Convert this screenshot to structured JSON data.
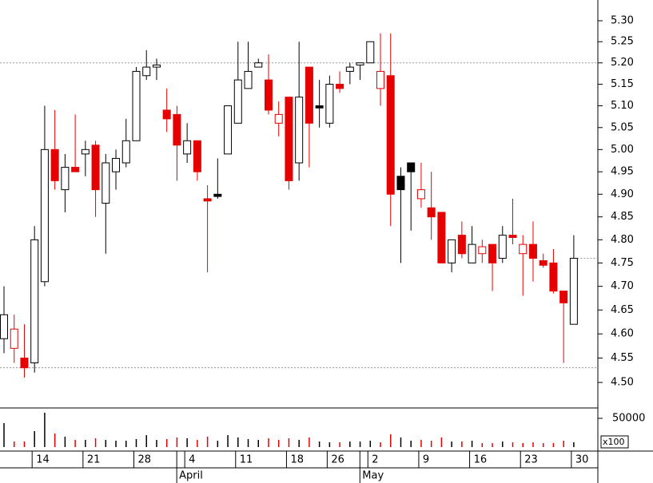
{
  "chart_data": {
    "type": "candlestick",
    "log_scale": true,
    "up_color": "#000000",
    "down_color": "#e60000",
    "categories": [
      null,
      null,
      null,
      "14",
      null,
      null,
      null,
      null,
      "21",
      null,
      null,
      null,
      null,
      "28",
      null,
      null,
      null,
      null,
      "4",
      null,
      null,
      null,
      null,
      "11",
      null,
      null,
      null,
      null,
      "18",
      null,
      null,
      null,
      "26",
      null,
      null,
      null,
      "2",
      null,
      null,
      null,
      null,
      "9",
      null,
      null,
      null,
      null,
      "16",
      null,
      null,
      null,
      null,
      "23",
      null,
      null,
      null,
      null,
      "30"
    ],
    "months": [
      null,
      null,
      null,
      null,
      null,
      null,
      null,
      null,
      null,
      null,
      null,
      null,
      null,
      null,
      null,
      null,
      null,
      null,
      "April",
      null,
      null,
      null,
      null,
      null,
      null,
      null,
      null,
      null,
      null,
      null,
      null,
      null,
      null,
      null,
      null,
      null,
      "May",
      null,
      null,
      null,
      null,
      null,
      null,
      null,
      null,
      null,
      null,
      null,
      null,
      null,
      null,
      null,
      null,
      null,
      null,
      null,
      null
    ],
    "open": [
      4.59,
      4.57,
      4.55,
      4.54,
      4.71,
      5.0,
      4.91,
      4.96,
      4.99,
      5.01,
      4.88,
      4.95,
      4.97,
      5.02,
      5.17,
      5.19,
      5.09,
      5.08,
      4.99,
      5.02,
      4.89,
      4.9,
      4.99,
      5.06,
      5.14,
      5.19,
      5.16,
      5.06,
      5.12,
      4.97,
      5.19,
      5.1,
      5.06,
      5.15,
      5.18,
      5.195,
      5.2,
      5.14,
      5.17,
      4.94,
      4.97,
      4.89,
      4.87,
      4.86,
      4.75,
      4.81,
      4.75,
      4.77,
      4.79,
      4.76,
      4.81,
      4.77,
      4.79,
      4.755,
      4.75,
      4.69,
      4.62
    ],
    "high": [
      4.7,
      4.64,
      4.62,
      4.83,
      5.1,
      5.09,
      4.99,
      5.08,
      5.02,
      5.02,
      4.99,
      5.0,
      5.07,
      5.19,
      5.23,
      5.21,
      5.14,
      5.1,
      5.06,
      5.02,
      4.92,
      4.98,
      5.1,
      5.25,
      5.25,
      5.21,
      5.22,
      5.11,
      5.12,
      5.25,
      5.19,
      5.16,
      5.17,
      5.18,
      5.2,
      5.2,
      5.25,
      5.27,
      5.27,
      4.96,
      4.97,
      4.97,
      4.95,
      4.86,
      4.8,
      4.84,
      4.83,
      4.8,
      4.79,
      4.83,
      4.89,
      4.81,
      4.84,
      4.77,
      4.78,
      4.69,
      4.81
    ],
    "low": [
      4.56,
      4.54,
      4.51,
      4.52,
      4.7,
      4.91,
      4.86,
      4.95,
      4.94,
      4.85,
      4.77,
      4.91,
      4.96,
      5.02,
      5.16,
      5.16,
      5.04,
      4.93,
      4.97,
      4.93,
      4.73,
      4.89,
      4.99,
      5.06,
      5.14,
      5.19,
      5.08,
      5.03,
      4.91,
      4.93,
      4.96,
      5.05,
      5.05,
      5.13,
      5.15,
      5.16,
      5.2,
      5.1,
      4.83,
      4.75,
      4.82,
      4.87,
      4.8,
      4.75,
      4.73,
      4.76,
      4.75,
      4.75,
      4.69,
      4.75,
      4.79,
      4.68,
      4.71,
      4.74,
      4.685,
      4.54,
      4.62
    ],
    "close": [
      4.64,
      4.61,
      4.53,
      4.8,
      5.0,
      4.93,
      4.96,
      4.95,
      5.0,
      4.91,
      4.97,
      4.98,
      5.02,
      5.18,
      5.19,
      5.195,
      5.07,
      5.01,
      5.02,
      4.95,
      4.885,
      4.895,
      5.1,
      5.16,
      5.18,
      5.2,
      5.09,
      5.08,
      4.93,
      5.12,
      5.06,
      5.095,
      5.15,
      5.14,
      5.19,
      5.2,
      5.25,
      5.18,
      4.9,
      4.91,
      4.95,
      4.91,
      4.85,
      4.75,
      4.8,
      4.77,
      4.79,
      4.785,
      4.75,
      4.81,
      4.805,
      4.79,
      4.76,
      4.745,
      4.69,
      4.665,
      4.76
    ],
    "volume": [
      41700,
      9700,
      9700,
      27800,
      59700,
      23600,
      18100,
      12500,
      12500,
      15300,
      12500,
      11100,
      11100,
      13900,
      20800,
      12500,
      13900,
      16700,
      15300,
      12500,
      18100,
      11100,
      20800,
      16700,
      13900,
      12500,
      15300,
      12500,
      15300,
      12500,
      16700,
      9700,
      8300,
      8300,
      9700,
      9700,
      11100,
      8300,
      22200,
      16700,
      11100,
      12500,
      11100,
      16700,
      9700,
      9700,
      11100,
      6900,
      6900,
      9700,
      8300,
      6900,
      8300,
      6900,
      6900,
      11100,
      8300
    ],
    "ylim": [
      4.45,
      5.35
    ],
    "yticks": [
      {
        "value": 5.3,
        "label": "5.30"
      },
      5.25,
      {
        "value": 5.2,
        "label": "5.20"
      },
      5.15,
      {
        "value": 5.1,
        "label": "5.10"
      },
      5.05,
      {
        "value": 5.0,
        "label": "5.00"
      },
      4.95,
      {
        "value": 4.9,
        "label": "4.90"
      },
      4.85,
      {
        "value": 4.8,
        "label": "4.80"
      },
      4.75,
      {
        "value": 4.7,
        "label": "4.70"
      },
      4.65,
      {
        "value": 4.6,
        "label": "4.60"
      },
      4.55,
      {
        "value": 4.5,
        "label": "4.50"
      }
    ],
    "reference_lines": [
      5.2,
      4.53
    ],
    "volume_ylim": [
      0,
      66700
    ],
    "volume_yticks": [
      50000
    ],
    "volume_unit": "x100"
  }
}
